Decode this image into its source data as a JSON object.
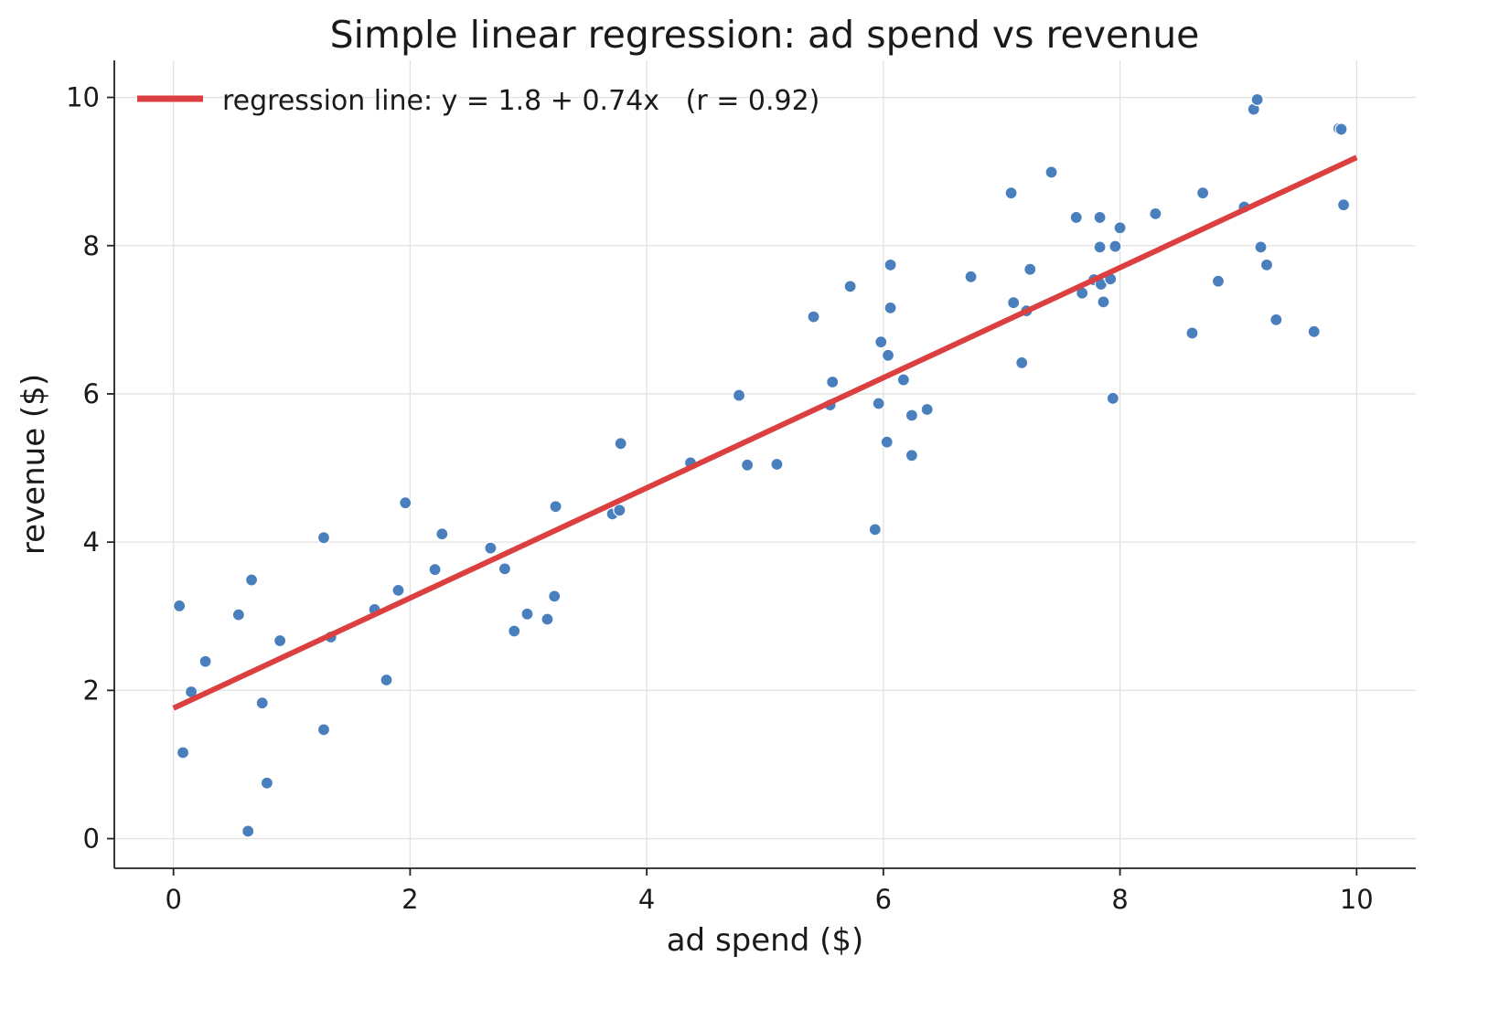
{
  "chart_data": {
    "type": "scatter",
    "title": "Simple linear regression: ad spend vs revenue",
    "xlabel": "ad spend ($)",
    "ylabel": "revenue ($)",
    "xlim": [
      -0.5,
      10.5
    ],
    "ylim": [
      -0.4,
      10.5
    ],
    "xticks": [
      0,
      2,
      4,
      6,
      8,
      10
    ],
    "yticks": [
      0,
      2,
      4,
      6,
      8,
      10
    ],
    "grid": true,
    "legend_position": "top-left",
    "colors": {
      "points": "#4a7fbe",
      "line": "#dc3f3f"
    },
    "series": [
      {
        "type": "scatter",
        "points": [
          [
            0.05,
            3.14
          ],
          [
            0.08,
            1.16
          ],
          [
            0.15,
            1.98
          ],
          [
            0.27,
            2.39
          ],
          [
            0.55,
            3.02
          ],
          [
            0.63,
            0.1
          ],
          [
            0.66,
            3.49
          ],
          [
            0.75,
            1.83
          ],
          [
            0.79,
            0.75
          ],
          [
            0.9,
            2.67
          ],
          [
            1.27,
            4.06
          ],
          [
            1.27,
            1.47
          ],
          [
            1.33,
            2.72
          ],
          [
            1.7,
            3.09
          ],
          [
            1.8,
            2.14
          ],
          [
            1.9,
            3.35
          ],
          [
            1.96,
            4.53
          ],
          [
            2.21,
            3.63
          ],
          [
            2.27,
            4.11
          ],
          [
            2.68,
            3.92
          ],
          [
            2.8,
            3.64
          ],
          [
            2.88,
            2.8
          ],
          [
            2.99,
            3.03
          ],
          [
            3.16,
            2.96
          ],
          [
            3.22,
            3.27
          ],
          [
            3.23,
            4.48
          ],
          [
            3.71,
            4.38
          ],
          [
            3.77,
            4.43
          ],
          [
            3.78,
            5.33
          ],
          [
            4.37,
            5.07
          ],
          [
            4.78,
            5.98
          ],
          [
            4.85,
            5.04
          ],
          [
            5.1,
            5.05
          ],
          [
            5.41,
            7.04
          ],
          [
            5.55,
            5.85
          ],
          [
            5.57,
            6.16
          ],
          [
            5.72,
            7.45
          ],
          [
            5.93,
            4.17
          ],
          [
            5.96,
            5.87
          ],
          [
            5.98,
            6.7
          ],
          [
            6.03,
            5.35
          ],
          [
            6.04,
            6.52
          ],
          [
            6.06,
            7.74
          ],
          [
            6.06,
            7.16
          ],
          [
            6.17,
            6.19
          ],
          [
            6.24,
            5.71
          ],
          [
            6.24,
            5.17
          ],
          [
            6.37,
            5.79
          ],
          [
            6.74,
            7.58
          ],
          [
            7.08,
            8.71
          ],
          [
            7.1,
            7.23
          ],
          [
            7.17,
            6.42
          ],
          [
            7.21,
            7.12
          ],
          [
            7.24,
            7.68
          ],
          [
            7.42,
            8.99
          ],
          [
            7.63,
            8.38
          ],
          [
            7.68,
            7.36
          ],
          [
            7.78,
            7.54
          ],
          [
            7.83,
            8.38
          ],
          [
            7.83,
            7.98
          ],
          [
            7.84,
            7.48
          ],
          [
            7.86,
            7.24
          ],
          [
            7.92,
            7.55
          ],
          [
            7.94,
            5.94
          ],
          [
            7.96,
            7.99
          ],
          [
            8.0,
            8.24
          ],
          [
            8.3,
            8.43
          ],
          [
            8.61,
            6.82
          ],
          [
            8.7,
            8.71
          ],
          [
            8.83,
            7.52
          ],
          [
            9.05,
            8.52
          ],
          [
            9.13,
            9.84
          ],
          [
            9.16,
            9.97
          ],
          [
            9.19,
            7.98
          ],
          [
            9.24,
            7.74
          ],
          [
            9.32,
            7.0
          ],
          [
            9.64,
            6.84
          ],
          [
            9.85,
            9.58
          ],
          [
            9.87,
            9.57
          ],
          [
            9.89,
            8.55
          ]
        ]
      },
      {
        "type": "line",
        "name": "regression line: y = 1.8 + 0.74x   (r = 0.92)",
        "intercept": 1.76,
        "slope": 0.743,
        "x": [
          0,
          10
        ]
      }
    ]
  }
}
